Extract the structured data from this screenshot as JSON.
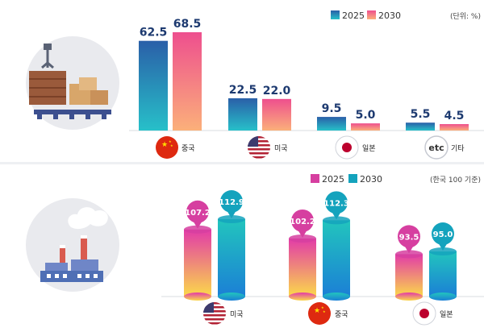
{
  "chart_data": [
    {
      "type": "bar",
      "series": [
        {
          "name": "2025",
          "values": [
            62.5,
            22.5,
            9.5,
            5.5
          ],
          "color": "#2e7fb6"
        },
        {
          "name": "2030",
          "values": [
            68.5,
            22.0,
            5.0,
            4.5
          ],
          "color": "#f06f8a"
        }
      ],
      "categories": [
        "중국",
        "미국",
        "일본",
        "기타"
      ],
      "category_icons": [
        "china-flag-icon",
        "usa-flag-icon",
        "japan-flag-icon",
        "etc-badge-icon"
      ],
      "etc_badge_text": "etc",
      "unit_note": "(단위: %)",
      "legend": [
        "2025",
        "2030"
      ],
      "ylim": [
        0,
        75
      ]
    },
    {
      "type": "bar",
      "series": [
        {
          "name": "2025",
          "values": [
            107.2,
            102.2,
            93.5
          ],
          "color": "#d63fa0"
        },
        {
          "name": "2030",
          "values": [
            112.9,
            112.3,
            95.0
          ],
          "color": "#14a3bd"
        }
      ],
      "categories": [
        "미국",
        "중국",
        "일본"
      ],
      "category_icons": [
        "usa-flag-icon",
        "china-flag-icon",
        "japan-flag-icon"
      ],
      "unit_note": "(한국 100 기준)",
      "legend": [
        "2025",
        "2030"
      ],
      "baseline": 70,
      "ylim": [
        70,
        120
      ]
    }
  ],
  "colors": {
    "top_2025_light": "#27c0c9",
    "top_2025_dark": "#2a5fa8",
    "top_2030_light": "#fbb07a",
    "top_2030_dark": "#ee4f8e",
    "bottom_2025_light": "#fbd94a",
    "bottom_2025_dark": "#e23ba8",
    "bottom_2030_light": "#1b7fd6",
    "bottom_2030_dark": "#22c5bd",
    "value_text_top": "#1d3a70",
    "icon_circle": "#e9eaee"
  }
}
